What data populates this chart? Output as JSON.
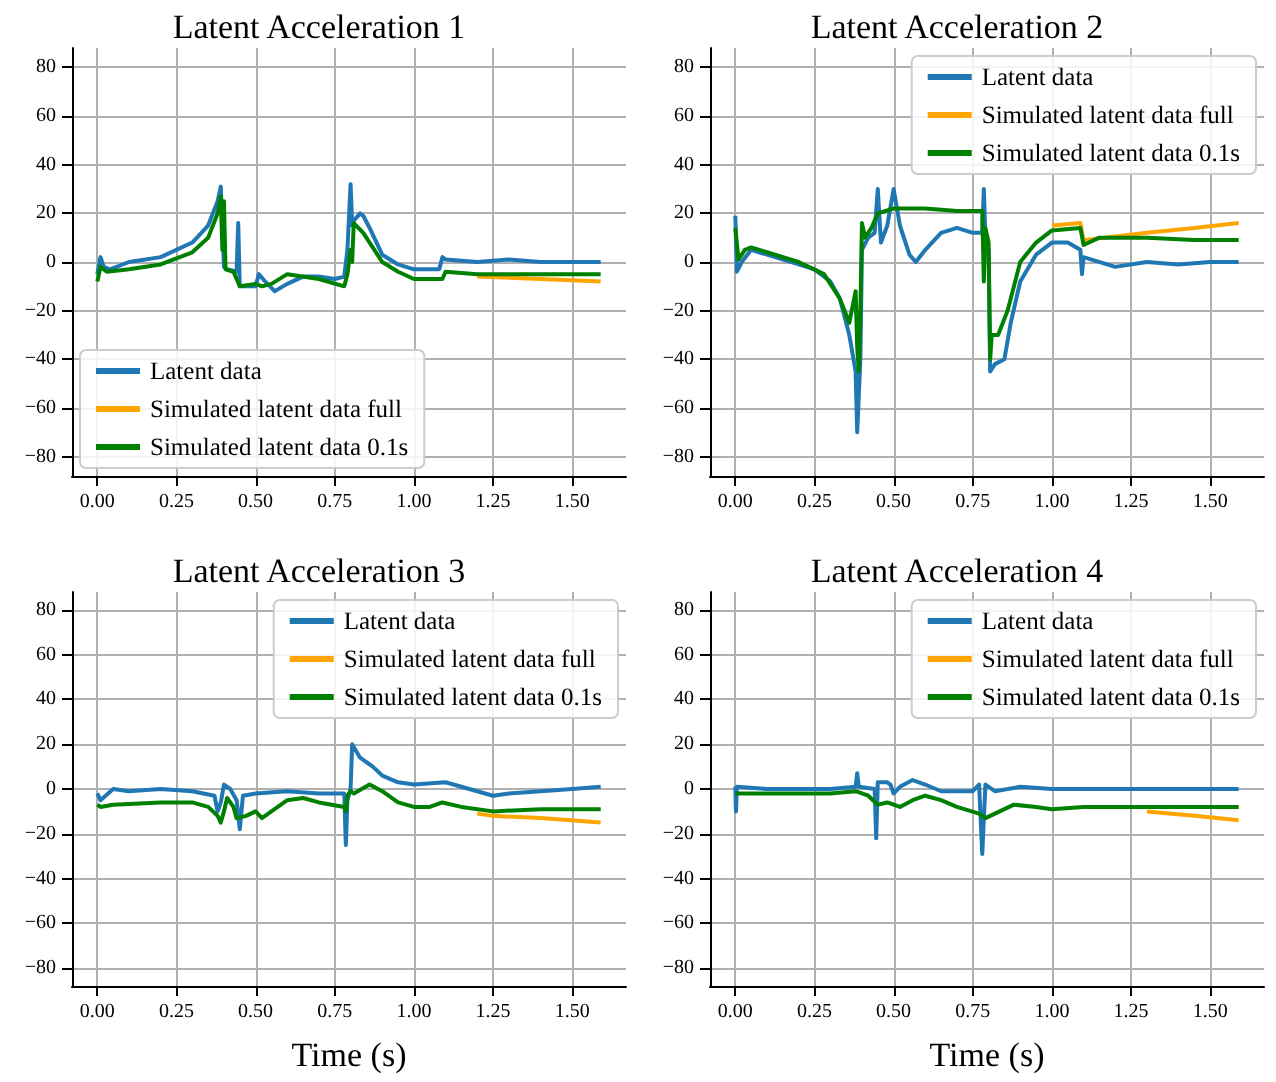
{
  "chart_data": [
    {
      "type": "line",
      "title": "Latent Acceleration 1",
      "xlim": [
        -0.08,
        1.67
      ],
      "ylim": [
        -88,
        88
      ],
      "grid": true,
      "legend": "bottom left",
      "xticks": [
        {
          "value": 0,
          "label": "0.00"
        },
        {
          "value": 0.25,
          "label": "0.25"
        },
        {
          "value": 0.5,
          "label": "0.50"
        },
        {
          "value": 0.75,
          "label": "0.75"
        },
        {
          "value": 1,
          "label": "1.00"
        },
        {
          "value": 1.25,
          "label": "1.25"
        },
        {
          "value": 1.5,
          "label": "1.50"
        }
      ],
      "yticks": [
        {
          "value": -80,
          "label": "−80"
        },
        {
          "value": -60,
          "label": "−60"
        },
        {
          "value": -40,
          "label": "−40"
        },
        {
          "value": -20,
          "label": "−20"
        },
        0,
        20,
        40,
        60,
        80
      ],
      "series": [
        {
          "name": "Latent data",
          "color": "#1f77b4",
          "x": [
            0,
            0.01,
            0.02,
            0.04,
            0.1,
            0.2,
            0.3,
            0.35,
            0.38,
            0.39,
            0.4,
            0.41,
            0.44,
            0.445,
            0.45,
            0.47,
            0.5,
            0.51,
            0.53,
            0.56,
            0.6,
            0.65,
            0.7,
            0.75,
            0.78,
            0.79,
            0.8,
            0.805,
            0.81,
            0.83,
            0.84,
            0.86,
            0.9,
            0.95,
            1,
            1.05,
            1.08,
            1.09,
            1.1,
            1.2,
            1.3,
            1.4,
            1.5,
            1.59
          ],
          "values": [
            -5,
            2,
            -2,
            -3,
            0,
            2,
            8,
            15,
            25,
            31,
            -2,
            -3,
            -4,
            16,
            -10,
            -10,
            -10,
            -5,
            -8,
            -12,
            -9,
            -6,
            -6,
            -7,
            -6,
            5,
            32,
            15,
            17,
            20,
            19,
            14,
            3,
            -1,
            -3,
            -3,
            -3,
            2,
            1,
            0,
            1,
            0,
            0,
            0
          ]
        },
        {
          "name": "Simulated latent data full",
          "color": "#ffa500",
          "x": [
            1.2,
            1.4,
            1.59
          ],
          "values": [
            -6,
            -7,
            -8
          ]
        },
        {
          "name": "Simulated latent data 0.1s",
          "color": "#008000",
          "x": [
            0,
            0.01,
            0.03,
            0.1,
            0.2,
            0.3,
            0.35,
            0.38,
            0.39,
            0.395,
            0.4,
            0.405,
            0.43,
            0.45,
            0.5,
            0.52,
            0.55,
            0.6,
            0.7,
            0.78,
            0.79,
            0.8,
            0.805,
            0.81,
            0.84,
            0.9,
            0.95,
            1,
            1.09,
            1.1,
            1.2,
            1.4,
            1.59
          ],
          "values": [
            -8,
            -2,
            -4,
            -3,
            -1,
            4,
            10,
            20,
            27,
            5,
            25,
            -3,
            -4,
            -10,
            -9,
            -10,
            -9,
            -5,
            -7,
            -10,
            -5,
            5,
            0,
            16,
            12,
            0,
            -4,
            -7,
            -7,
            -4,
            -5,
            -5,
            -5
          ]
        }
      ]
    },
    {
      "type": "line",
      "title": "Latent Acceleration 2",
      "xlim": [
        -0.08,
        1.67
      ],
      "ylim": [
        -88,
        88
      ],
      "grid": true,
      "legend": "top right",
      "xticks": [
        {
          "value": 0,
          "label": "0.00"
        },
        {
          "value": 0.25,
          "label": "0.25"
        },
        {
          "value": 0.5,
          "label": "0.50"
        },
        {
          "value": 0.75,
          "label": "0.75"
        },
        {
          "value": 1,
          "label": "1.00"
        },
        {
          "value": 1.25,
          "label": "1.25"
        },
        {
          "value": 1.5,
          "label": "1.50"
        }
      ],
      "yticks": [
        {
          "value": -80,
          "label": "−80"
        },
        {
          "value": -60,
          "label": "−60"
        },
        {
          "value": -40,
          "label": "−40"
        },
        {
          "value": -20,
          "label": "−20"
        },
        0,
        20,
        40,
        60,
        80
      ],
      "series": [
        {
          "name": "Latent data",
          "color": "#1f77b4",
          "x": [
            0,
            0.005,
            0.02,
            0.05,
            0.1,
            0.2,
            0.25,
            0.3,
            0.33,
            0.36,
            0.38,
            0.385,
            0.39,
            0.395,
            0.4,
            0.42,
            0.44,
            0.45,
            0.46,
            0.48,
            0.5,
            0.52,
            0.55,
            0.57,
            0.6,
            0.65,
            0.7,
            0.75,
            0.78,
            0.785,
            0.79,
            0.8,
            0.805,
            0.82,
            0.85,
            0.87,
            0.9,
            0.95,
            1,
            1.05,
            1.09,
            1.095,
            1.1,
            1.2,
            1.3,
            1.4,
            1.5,
            1.59
          ],
          "values": [
            19,
            -4,
            0,
            5,
            3,
            -1,
            -3,
            -8,
            -15,
            -30,
            -45,
            -70,
            -55,
            -40,
            5,
            10,
            12,
            30,
            8,
            15,
            30,
            15,
            3,
            0,
            5,
            12,
            14,
            12,
            12,
            30,
            10,
            5,
            -45,
            -42,
            -40,
            -25,
            -8,
            3,
            8,
            8,
            5,
            -5,
            2,
            -2,
            0,
            -1,
            0,
            0
          ]
        },
        {
          "name": "Simulated latent data full",
          "color": "#ffa500",
          "x": [
            1,
            1.09,
            1.1,
            1.3,
            1.45,
            1.59
          ],
          "values": [
            15,
            16,
            9,
            12,
            14,
            16
          ]
        },
        {
          "name": "Simulated latent data 0.1s",
          "color": "#008000",
          "x": [
            0,
            0.01,
            0.03,
            0.05,
            0.1,
            0.2,
            0.28,
            0.33,
            0.36,
            0.38,
            0.385,
            0.39,
            0.395,
            0.4,
            0.41,
            0.43,
            0.45,
            0.5,
            0.6,
            0.7,
            0.78,
            0.785,
            0.79,
            0.8,
            0.805,
            0.81,
            0.83,
            0.86,
            0.9,
            0.95,
            1,
            1.09,
            1.1,
            1.15,
            1.3,
            1.45,
            1.59
          ],
          "values": [
            14,
            1,
            5,
            6,
            4,
            0,
            -5,
            -15,
            -25,
            -12,
            -35,
            -45,
            -20,
            16,
            10,
            14,
            20,
            22,
            22,
            21,
            21,
            -8,
            14,
            8,
            -40,
            -30,
            -30,
            -20,
            0,
            8,
            13,
            14,
            7,
            10,
            10,
            9,
            9
          ]
        }
      ]
    },
    {
      "type": "line",
      "title": "Latent Acceleration 3",
      "xlabel": "Time (s)",
      "xlim": [
        -0.08,
        1.67
      ],
      "ylim": [
        -88,
        88
      ],
      "grid": true,
      "legend": "top right",
      "xticks": [
        {
          "value": 0,
          "label": "0.00"
        },
        {
          "value": 0.25,
          "label": "0.25"
        },
        {
          "value": 0.5,
          "label": "0.50"
        },
        {
          "value": 0.75,
          "label": "0.75"
        },
        {
          "value": 1,
          "label": "1.00"
        },
        {
          "value": 1.25,
          "label": "1.25"
        },
        {
          "value": 1.5,
          "label": "1.50"
        }
      ],
      "yticks": [
        {
          "value": -80,
          "label": "−80"
        },
        {
          "value": -60,
          "label": "−60"
        },
        {
          "value": -40,
          "label": "−40"
        },
        {
          "value": -20,
          "label": "−20"
        },
        0,
        20,
        40,
        60,
        80
      ],
      "series": [
        {
          "name": "Latent data",
          "color": "#1f77b4",
          "x": [
            0,
            0.01,
            0.05,
            0.1,
            0.2,
            0.3,
            0.37,
            0.38,
            0.39,
            0.4,
            0.42,
            0.44,
            0.45,
            0.46,
            0.5,
            0.6,
            0.7,
            0.78,
            0.785,
            0.79,
            0.8,
            0.805,
            0.83,
            0.87,
            0.9,
            0.95,
            1,
            1.1,
            1.2,
            1.25,
            1.3,
            1.4,
            1.5,
            1.59
          ],
          "values": [
            -2,
            -5,
            0,
            -1,
            0,
            -1,
            -3,
            -10,
            -6,
            2,
            0,
            -5,
            -18,
            -3,
            -2,
            -1,
            -2,
            -2,
            -25,
            -5,
            0,
            20,
            14,
            10,
            6,
            3,
            2,
            3,
            -1,
            -3,
            -2,
            -1,
            0,
            1
          ]
        },
        {
          "name": "Simulated latent data full",
          "color": "#ffa500",
          "x": [
            1.2,
            1.25,
            1.4,
            1.59
          ],
          "values": [
            -11,
            -12,
            -13,
            -15
          ]
        },
        {
          "name": "Simulated latent data 0.1s",
          "color": "#008000",
          "x": [
            0,
            0.01,
            0.05,
            0.2,
            0.3,
            0.35,
            0.38,
            0.39,
            0.4,
            0.41,
            0.43,
            0.44,
            0.47,
            0.5,
            0.52,
            0.55,
            0.6,
            0.65,
            0.7,
            0.78,
            0.785,
            0.79,
            0.8,
            0.81,
            0.86,
            0.9,
            0.95,
            1,
            1.05,
            1.09,
            1.15,
            1.25,
            1.4,
            1.59
          ],
          "values": [
            -7,
            -8,
            -7,
            -6,
            -6,
            -8,
            -12,
            -15,
            -10,
            -4,
            -8,
            -13,
            -12,
            -10,
            -13,
            -10,
            -5,
            -4,
            -6,
            -8,
            -10,
            -3,
            -1,
            -2,
            2,
            -1,
            -6,
            -8,
            -8,
            -6,
            -8,
            -10,
            -9,
            -9
          ]
        }
      ]
    },
    {
      "type": "line",
      "title": "Latent Acceleration 4",
      "xlabel": "Time (s)",
      "xlim": [
        -0.08,
        1.67
      ],
      "ylim": [
        -88,
        88
      ],
      "grid": true,
      "legend": "top right",
      "xticks": [
        {
          "value": 0,
          "label": "0.00"
        },
        {
          "value": 0.25,
          "label": "0.25"
        },
        {
          "value": 0.5,
          "label": "0.50"
        },
        {
          "value": 0.75,
          "label": "0.75"
        },
        {
          "value": 1,
          "label": "1.00"
        },
        {
          "value": 1.25,
          "label": "1.25"
        },
        {
          "value": 1.5,
          "label": "1.50"
        }
      ],
      "yticks": [
        {
          "value": -80,
          "label": "−80"
        },
        {
          "value": -60,
          "label": "−60"
        },
        {
          "value": -40,
          "label": "−40"
        },
        {
          "value": -20,
          "label": "−20"
        },
        0,
        20,
        40,
        60,
        80
      ],
      "series": [
        {
          "name": "Latent data",
          "color": "#1f77b4",
          "x": [
            0,
            0.002,
            0.005,
            0.1,
            0.3,
            0.38,
            0.385,
            0.39,
            0.44,
            0.445,
            0.45,
            0.48,
            0.49,
            0.5,
            0.52,
            0.56,
            0.6,
            0.65,
            0.75,
            0.77,
            0.78,
            0.79,
            0.82,
            0.9,
            1,
            1.1,
            1.3,
            1.59
          ],
          "values": [
            1,
            -10,
            1,
            0,
            0,
            1,
            7,
            1,
            0,
            -22,
            3,
            3,
            2,
            -2,
            1,
            4,
            2,
            -1,
            -1,
            2,
            -29,
            2,
            -1,
            1,
            0,
            0,
            0,
            0
          ]
        },
        {
          "name": "Simulated latent data full",
          "color": "#ffa500",
          "x": [
            1.3,
            1.45,
            1.59
          ],
          "values": [
            -10,
            -12,
            -14
          ]
        },
        {
          "name": "Simulated latent data 0.1s",
          "color": "#008000",
          "x": [
            0,
            0.1,
            0.3,
            0.38,
            0.42,
            0.45,
            0.48,
            0.52,
            0.56,
            0.6,
            0.65,
            0.7,
            0.77,
            0.79,
            0.82,
            0.88,
            0.95,
            1,
            1.1,
            1.2,
            1.3,
            1.45,
            1.59
          ],
          "values": [
            -2,
            -2,
            -2,
            -1,
            -3,
            -7,
            -6,
            -8,
            -5,
            -3,
            -5,
            -8,
            -11,
            -13,
            -11,
            -7,
            -8,
            -9,
            -8,
            -8,
            -8,
            -8,
            -8
          ]
        }
      ]
    }
  ]
}
